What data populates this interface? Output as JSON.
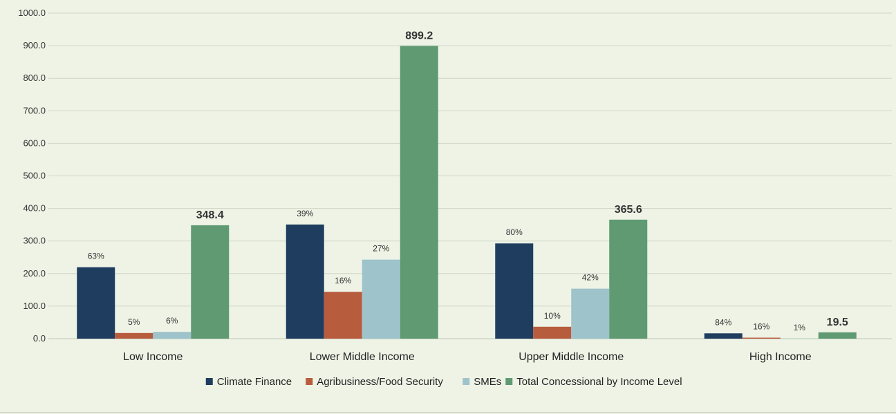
{
  "chart_data": {
    "type": "bar",
    "title": "",
    "xlabel": "",
    "ylabel": "",
    "ylim": [
      0,
      1000
    ],
    "yticks": [
      "0.0",
      "100.0",
      "200.0",
      "300.0",
      "400.0",
      "500.0",
      "600.0",
      "700.0",
      "800.0",
      "900.0",
      "1000.0"
    ],
    "grid": true,
    "legend_position": "bottom",
    "categories": [
      "Low Income",
      "Lower Middle Income",
      "Upper Middle Income",
      "High Income"
    ],
    "series": [
      {
        "name": "Climate Finance",
        "color": "#1f3e5f",
        "values": [
          219.5,
          350.7,
          292.5,
          16.4
        ],
        "labels": [
          "63%",
          "39%",
          "80%",
          "84%"
        ]
      },
      {
        "name": "Agribusiness/Food Security",
        "color": "#b85c3e",
        "values": [
          17.4,
          143.9,
          36.6,
          3.1
        ],
        "labels": [
          "5%",
          "16%",
          "10%",
          "16%"
        ]
      },
      {
        "name": "SMEs",
        "color": "#9ec3cb",
        "values": [
          20.9,
          242.8,
          153.6,
          0.2
        ],
        "labels": [
          "6%",
          "27%",
          "42%",
          "1%"
        ]
      },
      {
        "name": "Total Concessional by Income Level",
        "color": "#5f9a72",
        "values": [
          348.4,
          899.2,
          365.6,
          19.5
        ],
        "labels": [
          "348.4",
          "899.2",
          "365.6",
          "19.5"
        ]
      }
    ]
  }
}
